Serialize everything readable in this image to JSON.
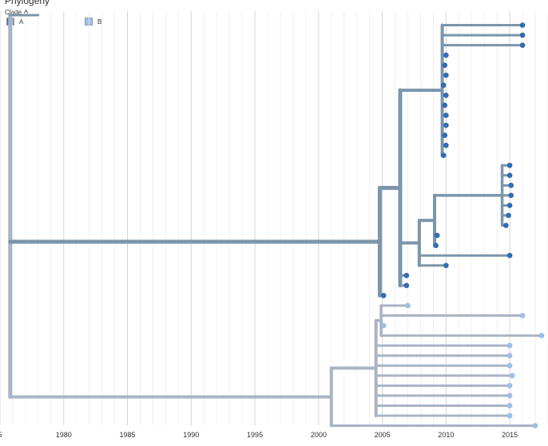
{
  "title": "Phylogeny",
  "legend": {
    "header": "Clade",
    "items": [
      {
        "label": "A",
        "color": "#2f6fb7"
      },
      {
        "label": "B",
        "color": "#9ec1ea"
      }
    ]
  },
  "chart_data": {
    "type": "phylogenetic-tree",
    "xlim": [
      1975,
      2018
    ],
    "x_ticks": [
      "5",
      "1980",
      "1985",
      "1990",
      "1995",
      "2000",
      "2005",
      "2010",
      "2015"
    ],
    "grid": true,
    "branch_colors": {
      "A": "#7b95ab",
      "B": "#a9b4c4"
    },
    "tip_colors": {
      "A": "#2f6fb7",
      "B": "#9ec1ea"
    },
    "nodes": {
      "root": {
        "x": 1975.8,
        "parent": null
      },
      "outB": {
        "x": 1978.0,
        "parent": "root",
        "leaf": true
      },
      "A0": {
        "x": 2004.8,
        "parent": "root"
      },
      "A1": {
        "x": 2006.4,
        "parent": "A0"
      },
      "A2": {
        "x": 2009.7,
        "parent": "A1"
      },
      "A3": {
        "x": 2007.9,
        "parent": "A1"
      },
      "A4": {
        "x": 2009.1,
        "parent": "A3"
      },
      "A5": {
        "x": 2014.4,
        "parent": "A4"
      },
      "B0": {
        "x": 2001.0,
        "parent": "root"
      },
      "B1": {
        "x": 2004.5,
        "parent": "B0"
      },
      "B2": {
        "x": 2004.9,
        "parent": "B1"
      }
    },
    "tips": [
      {
        "clade": "A",
        "x": 2016.0,
        "parent": "A2"
      },
      {
        "clade": "A",
        "x": 2016.0,
        "parent": "A2"
      },
      {
        "clade": "A",
        "x": 2016.0,
        "parent": "A2"
      },
      {
        "clade": "A",
        "x": 2010.0,
        "parent": "A2"
      },
      {
        "clade": "A",
        "x": 2009.9,
        "parent": "A2"
      },
      {
        "clade": "A",
        "x": 2010.0,
        "parent": "A2"
      },
      {
        "clade": "A",
        "x": 2009.8,
        "parent": "A2"
      },
      {
        "clade": "A",
        "x": 2010.0,
        "parent": "A2"
      },
      {
        "clade": "A",
        "x": 2009.9,
        "parent": "A2"
      },
      {
        "clade": "A",
        "x": 2010.0,
        "parent": "A2"
      },
      {
        "clade": "A",
        "x": 2010.0,
        "parent": "A2"
      },
      {
        "clade": "A",
        "x": 2009.9,
        "parent": "A2"
      },
      {
        "clade": "A",
        "x": 2010.0,
        "parent": "A2"
      },
      {
        "clade": "A",
        "x": 2009.8,
        "parent": "A2"
      },
      {
        "clade": "A",
        "x": 2015.0,
        "parent": "A5"
      },
      {
        "clade": "A",
        "x": 2015.0,
        "parent": "A5"
      },
      {
        "clade": "A",
        "x": 2015.1,
        "parent": "A5"
      },
      {
        "clade": "A",
        "x": 2015.1,
        "parent": "A5"
      },
      {
        "clade": "A",
        "x": 2015.0,
        "parent": "A5"
      },
      {
        "clade": "A",
        "x": 2014.9,
        "parent": "A5"
      },
      {
        "clade": "A",
        "x": 2014.7,
        "parent": "A5"
      },
      {
        "clade": "A",
        "x": 2009.3,
        "parent": "A4"
      },
      {
        "clade": "A",
        "x": 2009.2,
        "parent": "A4"
      },
      {
        "clade": "A",
        "x": 2015.0,
        "parent": "A3"
      },
      {
        "clade": "A",
        "x": 2010.0,
        "parent": "A3"
      },
      {
        "clade": "A",
        "x": 2006.9,
        "parent": "A1"
      },
      {
        "clade": "A",
        "x": 2006.9,
        "parent": "A1"
      },
      {
        "clade": "A",
        "x": 2005.1,
        "parent": "A0"
      },
      {
        "clade": "B",
        "x": 2015.0,
        "parent": "B1"
      },
      {
        "clade": "B",
        "x": 2015.0,
        "parent": "B1"
      },
      {
        "clade": "B",
        "x": 2015.0,
        "parent": "B1"
      },
      {
        "clade": "B",
        "x": 2015.2,
        "parent": "B1"
      },
      {
        "clade": "B",
        "x": 2015.0,
        "parent": "B1"
      },
      {
        "clade": "B",
        "x": 2015.0,
        "parent": "B1"
      },
      {
        "clade": "B",
        "x": 2007.0,
        "parent": "B2"
      },
      {
        "clade": "B",
        "x": 2016.0,
        "parent": "B2"
      },
      {
        "clade": "B",
        "x": 2005.1,
        "parent": "B2"
      },
      {
        "clade": "B",
        "x": 2017.5,
        "parent": "B2"
      },
      {
        "clade": "B",
        "x": 2015.0,
        "parent": "B1"
      },
      {
        "clade": "B",
        "x": 2015.0,
        "parent": "B1"
      },
      {
        "clade": "B",
        "x": 2017.0,
        "parent": "B0"
      }
    ]
  }
}
